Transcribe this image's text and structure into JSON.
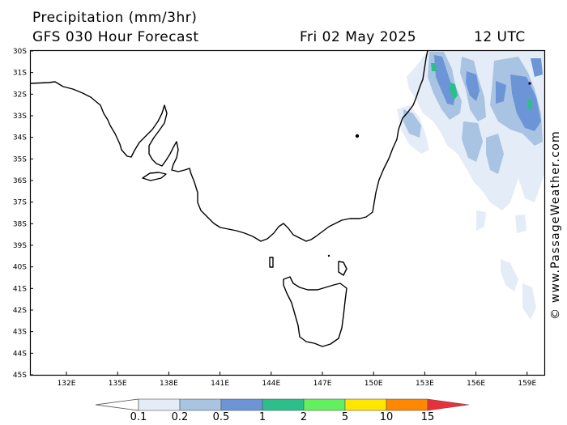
{
  "header": {
    "title": "Precipitation (mm/3hr)",
    "subtitle": "GFS 030 Hour Forecast",
    "date": "Fri 02 May 2025",
    "time": "12 UTC"
  },
  "map": {
    "lat_labels": [
      "30S",
      "31S",
      "32S",
      "33S",
      "34S",
      "35S",
      "36S",
      "37S",
      "38S",
      "39S",
      "40S",
      "41S",
      "42S",
      "43S",
      "44S",
      "45S"
    ],
    "lon_labels": [
      "132E",
      "135E",
      "138E",
      "141E",
      "144E",
      "147E",
      "150E",
      "153E",
      "156E",
      "159E"
    ],
    "land_color": "#ffffff",
    "coast_color": "#000000"
  },
  "credit": "© www.PassageWeather.com",
  "colorbar": {
    "labels": [
      "0.1",
      "0.2",
      "0.5",
      "1",
      "2",
      "5",
      "10",
      "15"
    ],
    "colors": [
      "#e4ecf7",
      "#a9c3e3",
      "#6b95d6",
      "#2cbf8c",
      "#63f05e",
      "#ffe600",
      "#ff8800",
      "#e8303a"
    ]
  }
}
